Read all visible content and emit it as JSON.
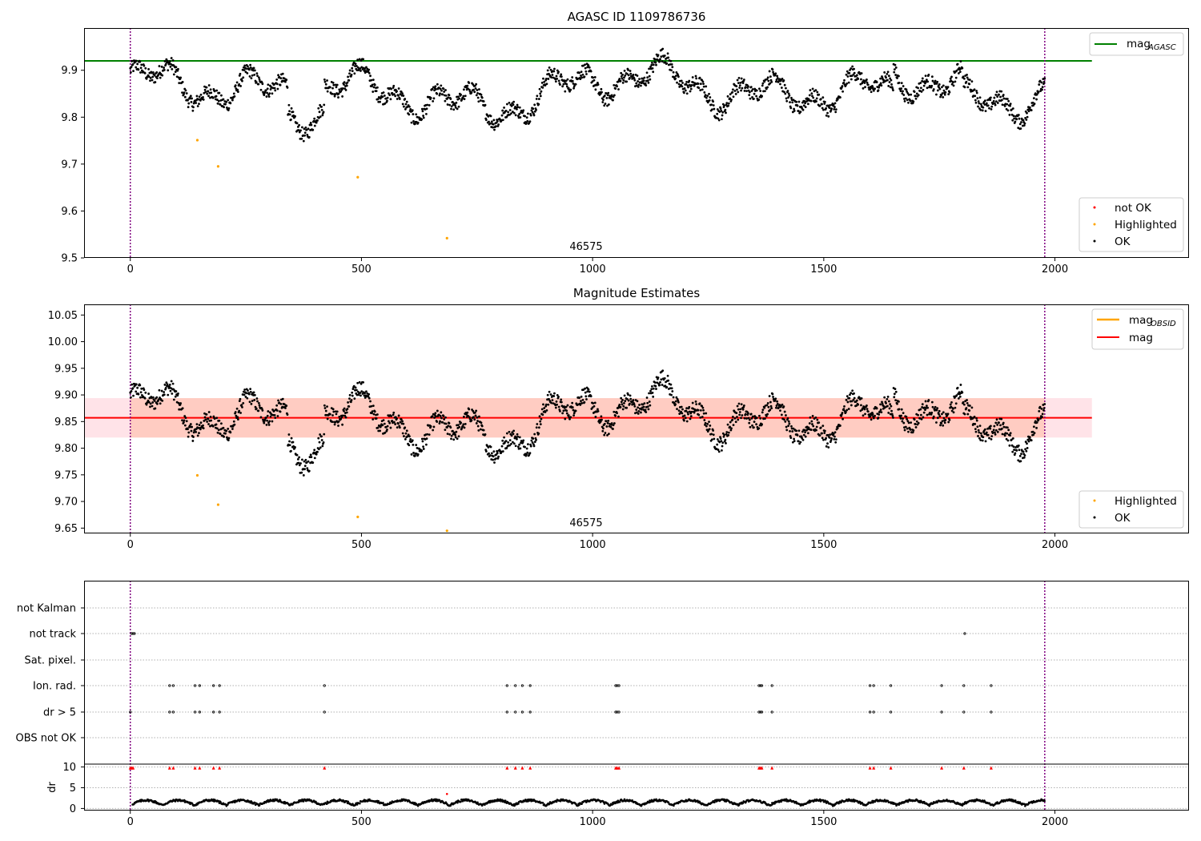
{
  "chart_data": [
    {
      "type": "scatter",
      "title": "AGASC ID 1109786736",
      "annotation": "46575",
      "xlim": [
        -100,
        2290
      ],
      "ylim": [
        9.5,
        9.99
      ],
      "xticks": [
        0,
        500,
        1000,
        1500,
        2000
      ],
      "yticks": [
        9.5,
        9.6,
        9.7,
        9.8,
        9.9
      ],
      "vlines": [
        0,
        1978
      ],
      "hline": {
        "name": "mag_AGASC",
        "label": "mag",
        "sub": "AGASC",
        "y": 9.92,
        "x": [
          -100,
          2080
        ],
        "color": "#008000"
      },
      "series": [
        {
          "name": "not OK",
          "color": "#ff0000",
          "x": [],
          "y": []
        },
        {
          "name": "Highlighted",
          "color": "#ffa500",
          "x": [
            145,
            190,
            492,
            685
          ],
          "y": [
            9.751,
            9.695,
            9.672,
            9.542
          ]
        },
        {
          "name": "OK",
          "color": "#000000",
          "note_trend": "dense time series",
          "x": [],
          "y": []
        }
      ],
      "legend_position": "lower right"
    },
    {
      "type": "scatter",
      "title": "Magnitude Estimates",
      "annotation": "46575",
      "xlim": [
        -100,
        2290
      ],
      "ylim": [
        9.64,
        10.07
      ],
      "xticks": [
        0,
        500,
        1000,
        1500,
        2000
      ],
      "yticks": [
        9.65,
        9.7,
        9.75,
        9.8,
        9.85,
        9.9,
        9.95,
        10.0,
        10.05
      ],
      "vlines": [
        0,
        1978
      ],
      "mag_line": {
        "name": "mag",
        "y": 9.857,
        "color": "#ff0000"
      },
      "mag_obsid_line": {
        "name": "mag_OBSID",
        "label": "mag",
        "sub": "OBSID",
        "y": 9.857,
        "color": "#ffa500"
      },
      "bands": [
        {
          "y0": 9.82,
          "y1": 9.894,
          "color": "#ffc0cb",
          "x": [
            -100,
            2080
          ]
        },
        {
          "y0": 9.82,
          "y1": 9.894,
          "color": "#ffa07a",
          "x": [
            0,
            1978
          ]
        }
      ],
      "series": [
        {
          "name": "Highlighted",
          "color": "#ffa500",
          "x": [
            145,
            190,
            492,
            685
          ],
          "y": [
            9.749,
            9.694,
            9.671,
            9.645
          ]
        },
        {
          "name": "OK",
          "color": "#000000",
          "x": [],
          "y": []
        }
      ],
      "legend_position": "lower right"
    },
    {
      "type": "scatter",
      "title": "",
      "xlim": [
        -100,
        2290
      ],
      "xticks": [
        0,
        500,
        1000,
        1500,
        2000
      ],
      "vlines": [
        0,
        1978
      ],
      "flag_rows": [
        "not Kalman",
        "not track",
        "Sat. pixel.",
        "Ion. rad.",
        "dr > 5",
        "OBS not OK"
      ],
      "flags": {
        "not Kalman": [],
        "not track": [
          3,
          6,
          9,
          1805
        ],
        "Sat. pixel.": [],
        "Ion. rad.": [
          85,
          93,
          140,
          150,
          180,
          193,
          420,
          815,
          833,
          848,
          865,
          1050,
          1053,
          1057,
          1360,
          1363,
          1366,
          1388,
          1600,
          1608,
          1645,
          1755,
          1803,
          1862
        ],
        "dr > 5": [
          0,
          85,
          93,
          140,
          150,
          180,
          193,
          420,
          815,
          833,
          848,
          865,
          1050,
          1053,
          1057,
          1360,
          1363,
          1366,
          1388,
          1600,
          1608,
          1645,
          1755,
          1803,
          1862
        ],
        "OBS not OK": []
      },
      "dr_ylabel": "dr",
      "dr_yticks": [
        0,
        5,
        10
      ],
      "dr_ylim": [
        -0.5,
        10.5
      ],
      "dr_clipped_x": [
        0,
        3,
        6,
        85,
        93,
        140,
        150,
        180,
        193,
        420,
        815,
        833,
        848,
        865,
        1050,
        1053,
        1057,
        1360,
        1363,
        1366,
        1388,
        1600,
        1608,
        1645,
        1755,
        1803,
        1862
      ],
      "dr_outlier": {
        "x": 685,
        "y": 3.5
      },
      "colors": {
        "flag": "#000000",
        "dr_clipped": "#ff0000",
        "grid": "#b0b0b0"
      }
    }
  ]
}
